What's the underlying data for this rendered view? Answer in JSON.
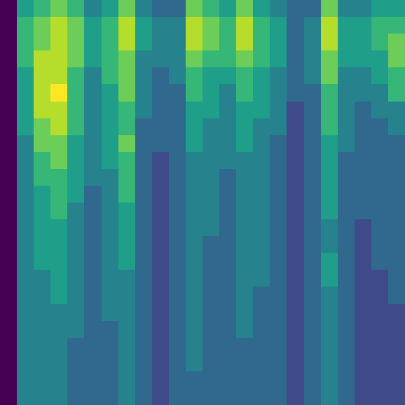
{
  "chart_data": {
    "type": "heatmap",
    "tick_labels": false,
    "grid": false,
    "zlim": [
      0,
      9
    ],
    "z": [
      [
        0,
        5,
        6,
        7,
        6,
        4,
        5,
        7,
        4,
        3,
        3,
        7,
        6,
        5,
        7,
        5,
        4,
        3,
        3,
        7,
        4,
        4,
        5,
        5
      ],
      [
        0,
        6,
        7,
        8,
        7,
        5,
        6,
        8,
        5,
        4,
        4,
        8,
        7,
        6,
        8,
        6,
        5,
        3,
        4,
        8,
        5,
        5,
        6,
        6
      ],
      [
        0,
        6,
        7,
        8,
        7,
        5,
        6,
        8,
        5,
        4,
        4,
        8,
        7,
        6,
        8,
        6,
        5,
        3,
        4,
        8,
        5,
        5,
        6,
        7
      ],
      [
        0,
        6,
        8,
        8,
        7,
        5,
        6,
        7,
        4,
        4,
        4,
        7,
        6,
        6,
        7,
        6,
        5,
        3,
        4,
        7,
        5,
        5,
        5,
        7
      ],
      [
        0,
        5,
        8,
        8,
        6,
        4,
        6,
        7,
        4,
        3,
        4,
        6,
        5,
        5,
        6,
        5,
        4,
        3,
        4,
        7,
        4,
        4,
        5,
        6
      ],
      [
        0,
        5,
        8,
        9,
        6,
        4,
        5,
        7,
        4,
        3,
        3,
        6,
        5,
        4,
        6,
        5,
        4,
        3,
        3,
        6,
        4,
        4,
        4,
        6
      ],
      [
        0,
        5,
        8,
        8,
        6,
        4,
        5,
        6,
        4,
        3,
        3,
        5,
        5,
        4,
        5,
        5,
        4,
        2,
        3,
        6,
        4,
        3,
        4,
        4
      ],
      [
        0,
        5,
        7,
        8,
        6,
        4,
        5,
        6,
        3,
        3,
        3,
        5,
        4,
        4,
        5,
        4,
        4,
        2,
        3,
        6,
        4,
        3,
        3,
        4
      ],
      [
        0,
        4,
        7,
        7,
        5,
        4,
        5,
        7,
        3,
        3,
        3,
        5,
        4,
        4,
        5,
        4,
        3,
        2,
        3,
        5,
        4,
        3,
        3,
        3
      ],
      [
        0,
        4,
        6,
        7,
        5,
        4,
        5,
        6,
        3,
        2,
        3,
        4,
        4,
        4,
        4,
        4,
        3,
        2,
        3,
        5,
        3,
        3,
        3,
        3
      ],
      [
        0,
        4,
        6,
        6,
        5,
        4,
        4,
        6,
        3,
        2,
        3,
        4,
        4,
        3,
        4,
        4,
        3,
        2,
        3,
        5,
        3,
        3,
        3,
        3
      ],
      [
        0,
        4,
        5,
        6,
        5,
        3,
        4,
        6,
        3,
        2,
        3,
        4,
        4,
        3,
        4,
        4,
        3,
        2,
        3,
        5,
        3,
        3,
        3,
        3
      ],
      [
        0,
        4,
        5,
        6,
        4,
        3,
        4,
        5,
        3,
        2,
        3,
        4,
        4,
        3,
        4,
        4,
        3,
        2,
        3,
        5,
        3,
        3,
        3,
        3
      ],
      [
        0,
        4,
        5,
        5,
        4,
        3,
        4,
        5,
        3,
        2,
        3,
        4,
        4,
        3,
        4,
        4,
        3,
        2,
        3,
        4,
        3,
        2,
        3,
        3
      ],
      [
        0,
        4,
        5,
        5,
        4,
        3,
        4,
        5,
        3,
        2,
        3,
        4,
        3,
        3,
        4,
        4,
        3,
        2,
        3,
        4,
        3,
        2,
        3,
        3
      ],
      [
        0,
        4,
        5,
        5,
        4,
        3,
        4,
        5,
        3,
        2,
        3,
        4,
        3,
        3,
        4,
        4,
        3,
        2,
        3,
        5,
        3,
        2,
        3,
        3
      ],
      [
        0,
        4,
        4,
        5,
        4,
        3,
        4,
        4,
        3,
        2,
        3,
        4,
        3,
        3,
        4,
        4,
        3,
        2,
        3,
        5,
        3,
        2,
        2,
        3
      ],
      [
        0,
        4,
        4,
        5,
        4,
        3,
        4,
        4,
        3,
        2,
        3,
        4,
        3,
        3,
        4,
        3,
        3,
        2,
        3,
        4,
        3,
        2,
        2,
        3
      ],
      [
        0,
        4,
        4,
        4,
        4,
        3,
        4,
        4,
        3,
        2,
        3,
        4,
        3,
        3,
        4,
        3,
        3,
        2,
        3,
        4,
        3,
        2,
        2,
        2
      ],
      [
        0,
        4,
        4,
        4,
        4,
        3,
        3,
        4,
        3,
        2,
        3,
        4,
        3,
        3,
        4,
        3,
        3,
        2,
        3,
        4,
        3,
        2,
        2,
        2
      ],
      [
        0,
        4,
        4,
        4,
        3,
        3,
        3,
        4,
        3,
        2,
        3,
        4,
        3,
        3,
        3,
        3,
        3,
        2,
        3,
        4,
        3,
        2,
        2,
        2
      ],
      [
        0,
        4,
        4,
        4,
        3,
        3,
        3,
        4,
        3,
        2,
        3,
        4,
        3,
        3,
        3,
        3,
        3,
        2,
        3,
        4,
        3,
        2,
        2,
        2
      ],
      [
        0,
        4,
        4,
        4,
        3,
        3,
        3,
        4,
        3,
        2,
        3,
        3,
        3,
        3,
        3,
        3,
        3,
        2,
        3,
        4,
        3,
        2,
        2,
        2
      ],
      [
        0,
        4,
        4,
        4,
        3,
        3,
        3,
        4,
        3,
        2,
        3,
        3,
        3,
        3,
        3,
        3,
        3,
        2,
        3,
        4,
        3,
        2,
        2,
        2
      ]
    ]
  }
}
